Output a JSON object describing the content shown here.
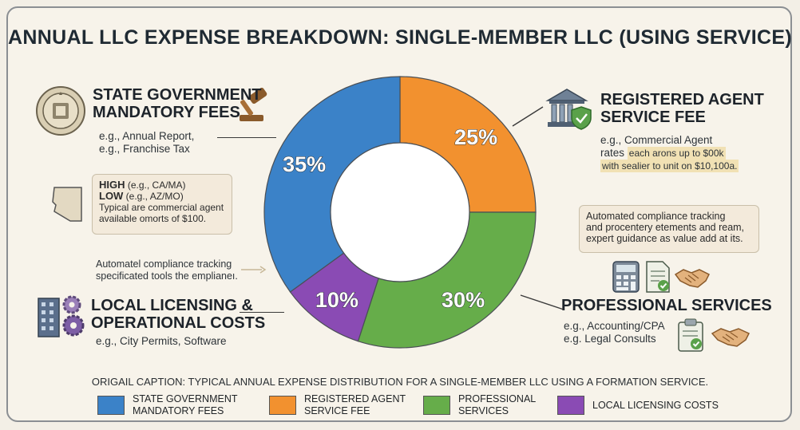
{
  "chart_data": {
    "type": "pie",
    "title": "ANNUAL LLC EXPENSE BREAKDOWN: SINGLE-MEMBER LLC (USING SERVICE)",
    "slices": [
      {
        "name": "REGISTERED AGENT SERVICE FEE",
        "value": 25,
        "label": "25%",
        "color": "#f2912f"
      },
      {
        "name": "PROFESSIONAL SERVICES",
        "value": 30,
        "label": "30%",
        "color": "#66ad4a"
      },
      {
        "name": "LOCAL LICENSING COSTS",
        "value": 10,
        "label": "10%",
        "color": "#8a4bb4"
      },
      {
        "name": "STATE GOVERNMENT MANDATORY FEES",
        "value": 35,
        "label": "35%",
        "color": "#3b82c8"
      }
    ],
    "caption": "ORIGAIl CAPTION: TYPICAL ANNUAL EXPENSE DISTRIBUTION FOR A SINGLE-MEMBER LLC USING A FORMATION SERVICE.",
    "legend": [
      {
        "label": "STATE GOVERNMENT MANDATORY FEES",
        "color": "#3b82c8"
      },
      {
        "label": "REGISTERED AGENT SERVICE FEE",
        "color": "#f2912f"
      },
      {
        "label": "PROFESSIONAL SERVICES",
        "color": "#66ad4a"
      },
      {
        "label": "LOCAL LICENSING COSTS",
        "color": "#8a4bb4"
      }
    ]
  },
  "annotations": {
    "state": {
      "heading_line1": "STATE GOVERNMENT",
      "heading_line2": "MANDATORY FEES",
      "note_line1": "e.g., Annual Report,",
      "note_line2": "e.g., Franchise Tax",
      "seal_text": "GREAT SEAL OF THE STATE",
      "seal_sub": "SEAL"
    },
    "state_bubble": {
      "high_label": "HIGH",
      "high_detail": "(e.g., CA/MA)",
      "low_label": "LOW",
      "low_detail": "(e.g., AZ/MO)",
      "line3": "Typical are commercial agent",
      "line4": "available omorts of $100."
    },
    "local_note": {
      "line1": "Automatel compliance tracking",
      "line2": "specificated tools the emplianeı."
    },
    "local": {
      "heading_line1": "LOCAL LICENSING &",
      "heading_line2": "OPERATIONAL COSTS",
      "note": "e.g., City Permits, Software"
    },
    "agent": {
      "heading_line1": "REGISTERED AGENT",
      "heading_line2": "SERVICE FEE",
      "note_line1": "e.g., Commercial Agent",
      "note_line2": "rates",
      "note_line2_tail": "each arons up to $00k",
      "note_line3": "with sealier to unit on $10,100a."
    },
    "pro_bubble": {
      "line1": "Automated compliance tracking",
      "line2": "and procentery etements and ream,",
      "line3": "expert guidance as value add at its."
    },
    "pro": {
      "heading": "PROFESSIONAL SERVICES",
      "note_line1": "e.g., Accounting/CPA",
      "note_line2": "e.g. Legal Consults"
    }
  }
}
